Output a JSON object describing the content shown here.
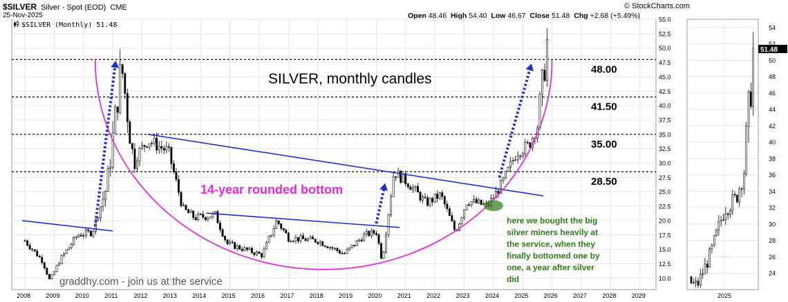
{
  "header": {
    "symbol": "$SILVER",
    "description": "Silver - Spot (EOD)",
    "exchange": "CME",
    "date": "25-Nov-2025",
    "copyright": "© StockCharts.com",
    "open_label": "Open",
    "open": "48.46",
    "high_label": "High",
    "high": "54.40",
    "low_label": "Low",
    "low": "46.67",
    "close_label": "Close",
    "close": "51.48",
    "chg_label": "Chg",
    "chg": "+2.68 (+5.49%)"
  },
  "legend": {
    "symbol_icon": "candlestick-icon",
    "label": "$SILVER (Monthly) 51.48"
  },
  "inset": {
    "year_label": "2025",
    "price_tag": "51.48",
    "y_ticks": [
      "54",
      "52",
      "50",
      "48",
      "46",
      "44",
      "42",
      "40",
      "38",
      "36",
      "34",
      "32",
      "30",
      "28",
      "26",
      "24"
    ]
  },
  "colors": {
    "trendline": "#1f2fd0",
    "arc": "#e62bd9",
    "arrow": "#1f2fd0",
    "annotation_green": "#2e7d1a",
    "title_magenta": "#e62bd9",
    "up_candle": "#ffffff",
    "down_candle": "#000000"
  },
  "chart_data": {
    "type": "candlestick",
    "frequency": "monthly",
    "y_axis_side": "right",
    "ylim": [
      8.0,
      55.0
    ],
    "y_ticks": [
      "55.0",
      "52.5",
      "50.0",
      "47.5",
      "45.0",
      "42.5",
      "40.0",
      "37.5",
      "35.0",
      "32.5",
      "30.0",
      "27.5",
      "25.0",
      "22.5",
      "20.0",
      "17.5",
      "15.0",
      "12.5",
      "10.0"
    ],
    "x_ticks": [
      "2008",
      "2009",
      "2010",
      "2011",
      "2012",
      "2013",
      "2014",
      "2015",
      "2016",
      "2017",
      "2018",
      "2019",
      "2020",
      "2021",
      "2022",
      "2023",
      "2024",
      "2025",
      "2026",
      "2027",
      "2028",
      "2029"
    ],
    "grid": true,
    "anchors": [
      {
        "year": 2008.0,
        "price": 16.5
      },
      {
        "year": 2008.6,
        "price": 13.0
      },
      {
        "year": 2008.85,
        "price": 9.5
      },
      {
        "year": 2009.2,
        "price": 13.2
      },
      {
        "year": 2009.8,
        "price": 17.5
      },
      {
        "year": 2010.3,
        "price": 18.0
      },
      {
        "year": 2010.8,
        "price": 26.0
      },
      {
        "year": 2011.3,
        "price": 47.0
      },
      {
        "year": 2011.7,
        "price": 30.5
      },
      {
        "year": 2012.2,
        "price": 34.0
      },
      {
        "year": 2012.9,
        "price": 32.0
      },
      {
        "year": 2013.4,
        "price": 22.0
      },
      {
        "year": 2013.8,
        "price": 20.5
      },
      {
        "year": 2014.5,
        "price": 21.0
      },
      {
        "year": 2014.9,
        "price": 16.0
      },
      {
        "year": 2015.8,
        "price": 14.5
      },
      {
        "year": 2016.1,
        "price": 14.0
      },
      {
        "year": 2016.6,
        "price": 20.0
      },
      {
        "year": 2017.0,
        "price": 17.0
      },
      {
        "year": 2018.0,
        "price": 16.5
      },
      {
        "year": 2018.9,
        "price": 14.2
      },
      {
        "year": 2019.6,
        "price": 17.5
      },
      {
        "year": 2020.0,
        "price": 18.0
      },
      {
        "year": 2020.2,
        "price": 13.0
      },
      {
        "year": 2020.6,
        "price": 28.5
      },
      {
        "year": 2021.1,
        "price": 26.5
      },
      {
        "year": 2021.7,
        "price": 23.0
      },
      {
        "year": 2022.2,
        "price": 24.5
      },
      {
        "year": 2022.7,
        "price": 18.0
      },
      {
        "year": 2023.1,
        "price": 23.5
      },
      {
        "year": 2023.8,
        "price": 22.5
      },
      {
        "year": 2024.3,
        "price": 26.5
      },
      {
        "year": 2024.8,
        "price": 32.0
      },
      {
        "year": 2025.2,
        "price": 33.0
      },
      {
        "year": 2025.5,
        "price": 36.5
      },
      {
        "year": 2025.75,
        "price": 47.0
      },
      {
        "year": 2025.9,
        "price": 51.5
      }
    ],
    "last_close": 51.48,
    "levels": [
      {
        "price": 48.0,
        "label": "48.00"
      },
      {
        "price": 41.5,
        "label": "41.50"
      },
      {
        "price": 35.0,
        "label": "35.00"
      },
      {
        "price": 28.5,
        "label": "28.50"
      }
    ],
    "trendlines": [
      {
        "from": [
          2007.9,
          20.0
        ],
        "to": [
          2011.0,
          18.2
        ]
      },
      {
        "from": [
          2012.2,
          35.0
        ],
        "to": [
          2025.7,
          24.3
        ]
      },
      {
        "from": [
          2014.2,
          21.3
        ],
        "to": [
          2020.8,
          18.8
        ]
      }
    ],
    "arrows": [
      {
        "from": [
          2010.4,
          19.0
        ],
        "to": [
          2011.1,
          47.8
        ]
      },
      {
        "from": [
          2020.0,
          19.5
        ],
        "to": [
          2020.3,
          26.5
        ]
      },
      {
        "from": [
          2024.2,
          27.5
        ],
        "to": [
          2025.3,
          47.3
        ]
      }
    ],
    "rounded_bottom": {
      "center": [
        2018.2,
        48.0
      ],
      "rx_years": 7.8,
      "ry_price": 36.5
    },
    "highlight": {
      "year": 2024.0,
      "price": 22.6
    },
    "annotations": {
      "title": "SILVER, monthly candles",
      "arc_label": "14-year rounded bottom",
      "green_note": [
        "here we bought the big",
        "silver miners heavily at",
        "the service, when they",
        "finally bottomed one by",
        "one, a year after silver",
        "did"
      ],
      "watermark": "graddhy.com - join us at the service"
    }
  }
}
